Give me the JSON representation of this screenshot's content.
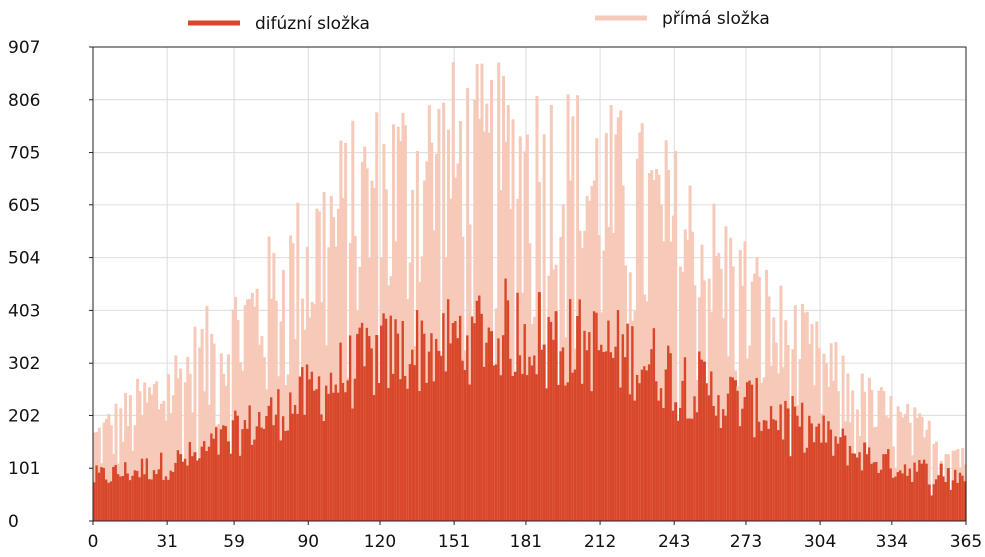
{
  "chart_data": {
    "type": "bar",
    "title": "",
    "xlabel": "",
    "ylabel": "",
    "x_ticks": [
      0,
      31,
      59,
      90,
      120,
      151,
      181,
      212,
      243,
      273,
      304,
      334,
      365
    ],
    "y_ticks": [
      0,
      101,
      202,
      302,
      403,
      504,
      605,
      705,
      806,
      907
    ],
    "xlim": [
      0,
      365
    ],
    "ylim": [
      0,
      907
    ],
    "grid": true,
    "legend_position": "top",
    "series": [
      {
        "name": "difúzní složka",
        "color": "#d9472b",
        "style": "line-swatch",
        "envelope_days": [
          0,
          15,
          31,
          45,
          59,
          75,
          90,
          105,
          120,
          135,
          151,
          165,
          181,
          196,
          212,
          228,
          243,
          258,
          273,
          288,
          304,
          319,
          334,
          350,
          365
        ],
        "envelope_values": [
          100,
          115,
          130,
          155,
          200,
          245,
          290,
          340,
          385,
          400,
          420,
          450,
          440,
          420,
          400,
          380,
          340,
          300,
          270,
          240,
          200,
          160,
          130,
          115,
          105
        ]
      },
      {
        "name": "přímá složka",
        "color": "#f7c9b8",
        "style": "line-swatch",
        "envelope_days": [
          0,
          15,
          31,
          45,
          59,
          75,
          90,
          105,
          120,
          135,
          151,
          165,
          181,
          196,
          212,
          228,
          243,
          258,
          273,
          288,
          304,
          319,
          334,
          350,
          365
        ],
        "envelope_values": [
          200,
          260,
          330,
          400,
          470,
          560,
          660,
          760,
          820,
          860,
          890,
          880,
          880,
          860,
          820,
          780,
          730,
          640,
          560,
          460,
          380,
          300,
          250,
          200,
          170
        ]
      }
    ]
  }
}
